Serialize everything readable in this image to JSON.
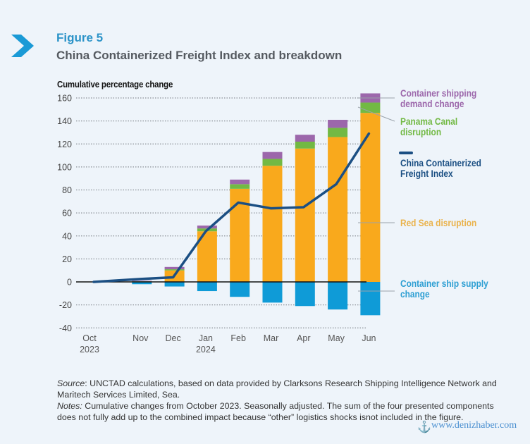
{
  "header": {
    "figure_label": "Figure 5",
    "figure_title": "China Containerized Freight Index and breakdown"
  },
  "chart_data": {
    "type": "bar",
    "stacked": true,
    "title": "China Containerized Freight Index and breakdown",
    "ylabel": "Cumulative percentage change",
    "xlabel": "",
    "ylim": [
      -40,
      160
    ],
    "yticks": [
      160,
      140,
      120,
      100,
      80,
      60,
      40,
      20,
      0,
      -20,
      -40
    ],
    "grid": true,
    "categories": [
      "Oct\n2023",
      "Nov",
      "Dec",
      "Jan\n2024",
      "Feb",
      "Mar",
      "Apr",
      "May",
      "Jun"
    ],
    "category_labels": [
      {
        "line1": "Oct",
        "line2": "2023"
      },
      {
        "line1": "Nov",
        "line2": ""
      },
      {
        "line1": "Dec",
        "line2": ""
      },
      {
        "line1": "Jan",
        "line2": "2024"
      },
      {
        "line1": "Feb",
        "line2": ""
      },
      {
        "line1": "Mar",
        "line2": ""
      },
      {
        "line1": "Apr",
        "line2": ""
      },
      {
        "line1": "May",
        "line2": ""
      },
      {
        "line1": "Jun",
        "line2": ""
      }
    ],
    "series": [
      {
        "name": "Container ship supply change",
        "kind": "bar",
        "color": "#0f9bd7",
        "values": [
          0,
          -2,
          -4,
          -8,
          -13,
          -18,
          -21,
          -24,
          -29
        ]
      },
      {
        "name": "Red Sea disruption",
        "kind": "bar",
        "color": "#f9a91c",
        "values": [
          0,
          0,
          10,
          44,
          81,
          101,
          116,
          126,
          147
        ]
      },
      {
        "name": "Panama Canal disruption",
        "kind": "bar",
        "color": "#72b944",
        "values": [
          0,
          0.5,
          1,
          2.5,
          4,
          6,
          6,
          8,
          9
        ]
      },
      {
        "name": "Container shipping demand change",
        "kind": "bar",
        "color": "#9c67ab",
        "values": [
          0,
          0.5,
          2,
          2.5,
          4,
          6,
          6,
          7,
          8
        ]
      },
      {
        "name": "China Containerized Freight Index",
        "kind": "line",
        "color": "#1b4f83",
        "values": [
          0,
          2.5,
          4,
          44,
          69,
          64,
          65,
          85,
          129
        ]
      }
    ],
    "legend": {
      "placement": "right",
      "entries": [
        {
          "label_lines": [
            "Container shipping",
            "demand change"
          ],
          "color": "#9c67ab"
        },
        {
          "label_lines": [
            "Panama Canal",
            "disruption"
          ],
          "color": "#72b944"
        },
        {
          "label_lines": [
            "China Containerized",
            "Freight Index"
          ],
          "color": "#1b4f83"
        },
        {
          "label_lines": [
            "Red Sea disruption"
          ],
          "color": "#eab24a"
        },
        {
          "label_lines": [
            "Container ship supply",
            "change"
          ],
          "color": "#2e9fd3"
        }
      ]
    }
  },
  "footer": {
    "source_label": "Source",
    "source_text": ": UNCTAD calculations, based on data provided by Clarksons Research Shipping Intelligence Network and Maritech Services Limited, Sea.",
    "notes_label": "Notes:",
    "notes_text": " Cumulative changes from October 2023. Seasonally adjusted. The sum of the four presented components does not fully add up to the combined impact because “other” logistics shocks isnot included in the figure."
  },
  "watermark": {
    "text": "www.denizhaber.com",
    "icon": "anchor-icon"
  }
}
